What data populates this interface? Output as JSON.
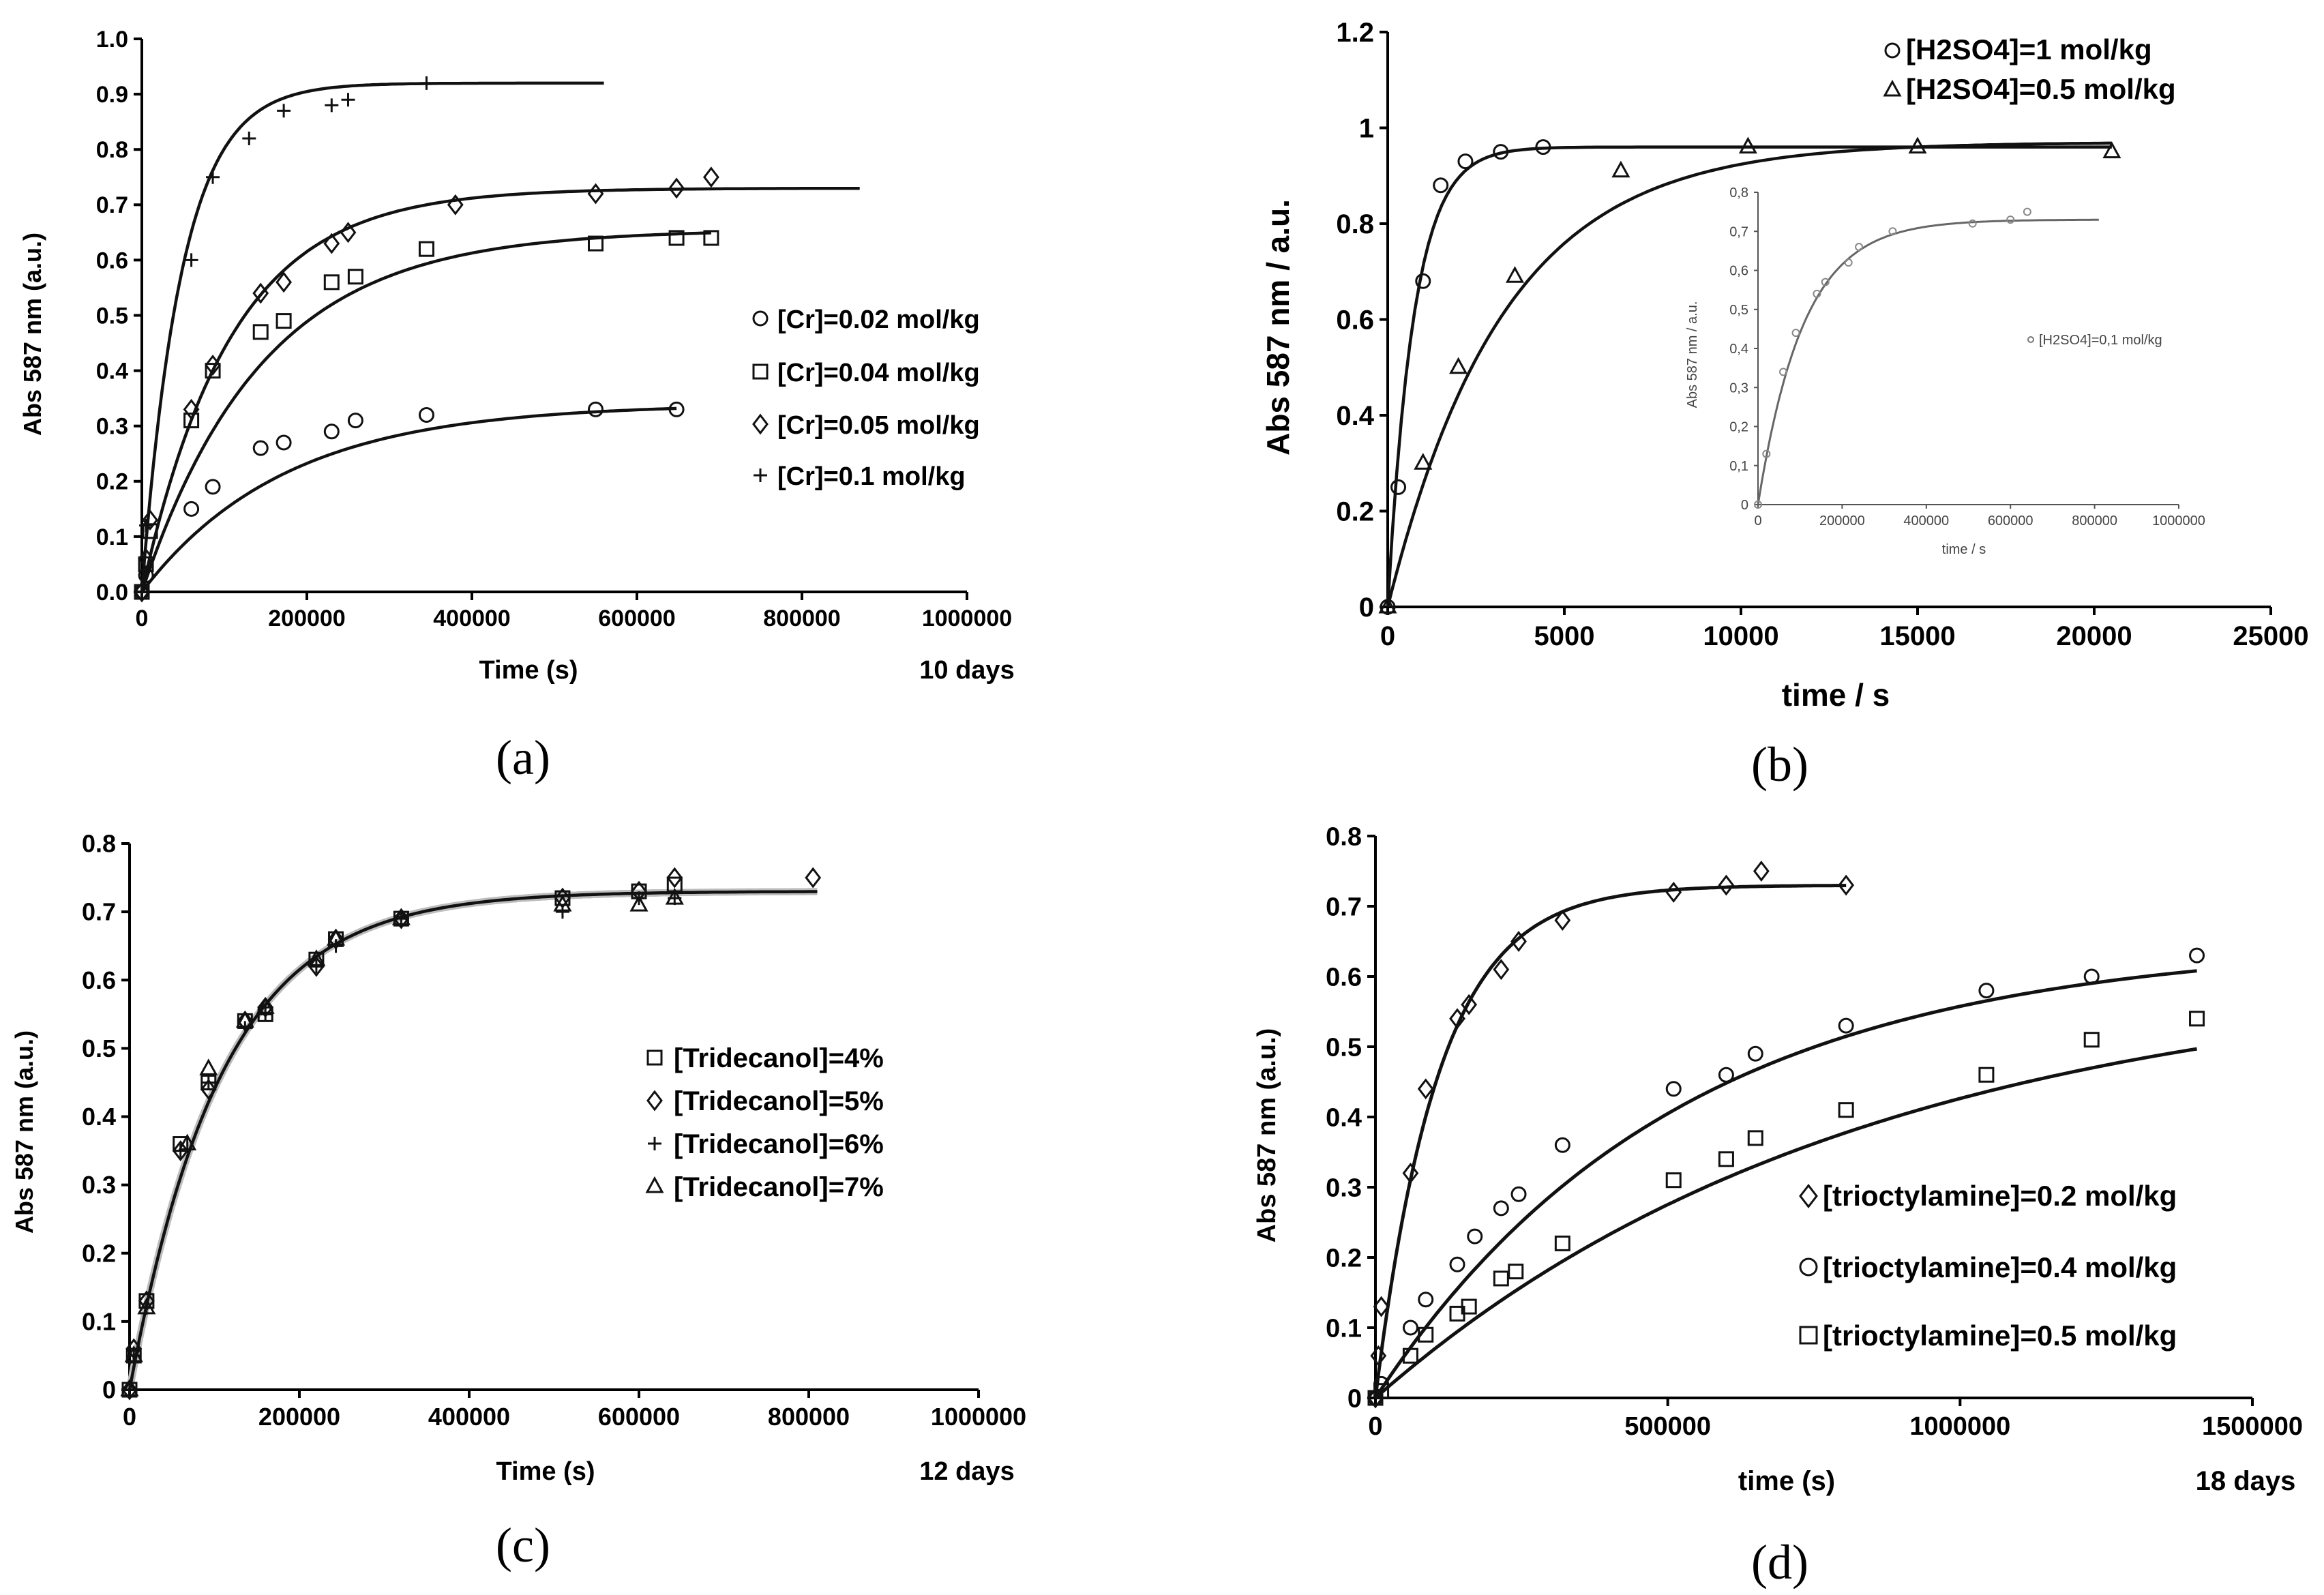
{
  "chart_data": [
    {
      "panel": "a",
      "type": "scatter",
      "caption": "(a)",
      "xlabel": "Time (s)",
      "ylabel": "Abs 587 nm (a.u.)",
      "extra_label": "10 days",
      "xlim": [
        0,
        1000000
      ],
      "ylim": [
        0,
        1.0
      ],
      "xticks": [
        "0",
        "200000",
        "400000",
        "600000",
        "800000",
        "1000000"
      ],
      "yticks": [
        "0.0",
        "0.1",
        "0.2",
        "0.3",
        "0.4",
        "0.5",
        "0.6",
        "0.7",
        "0.8",
        "0.9",
        "1.0"
      ],
      "legend_position": "right",
      "series": [
        {
          "name": "[Cr]=0.02 mol/kg",
          "marker": "circle",
          "points": [
            [
              0,
              0
            ],
            [
              5000,
              0.03
            ],
            [
              60000,
              0.15
            ],
            [
              86000,
              0.19
            ],
            [
              144000,
              0.26
            ],
            [
              172000,
              0.27
            ],
            [
              230000,
              0.29
            ],
            [
              259000,
              0.31
            ],
            [
              345000,
              0.32
            ],
            [
              550000,
              0.33
            ],
            [
              648000,
              0.33
            ]
          ],
          "fit": {
            "asymptote": 0.34,
            "k": 5.75e-06,
            "xmax": 648000
          }
        },
        {
          "name": "[Cr]=0.04 mol/kg",
          "marker": "square",
          "points": [
            [
              0,
              0
            ],
            [
              5000,
              0.05
            ],
            [
              10000,
              0.11
            ],
            [
              60000,
              0.31
            ],
            [
              86000,
              0.4
            ],
            [
              144000,
              0.47
            ],
            [
              172000,
              0.49
            ],
            [
              230000,
              0.56
            ],
            [
              259000,
              0.57
            ],
            [
              345000,
              0.62
            ],
            [
              550000,
              0.63
            ],
            [
              648000,
              0.64
            ],
            [
              690000,
              0.64
            ]
          ],
          "fit": {
            "asymptote": 0.655,
            "k": 6.85e-06,
            "xmax": 690000
          }
        },
        {
          "name": "[Cr]=0.05 mol/kg",
          "marker": "diamond",
          "points": [
            [
              0,
              0
            ],
            [
              5000,
              0.06
            ],
            [
              10000,
              0.13
            ],
            [
              60000,
              0.33
            ],
            [
              86000,
              0.41
            ],
            [
              144000,
              0.54
            ],
            [
              172000,
              0.56
            ],
            [
              230000,
              0.63
            ],
            [
              250000,
              0.65
            ],
            [
              380000,
              0.7
            ],
            [
              550000,
              0.72
            ],
            [
              648000,
              0.73
            ],
            [
              690000,
              0.75
            ]
          ],
          "fit": {
            "asymptote": 0.73,
            "k": 9.25e-06,
            "xmax": 870000
          }
        },
        {
          "name": "[Cr]=0.1 mol/kg",
          "marker": "plus",
          "points": [
            [
              0,
              0
            ],
            [
              5000,
              0.12
            ],
            [
              60000,
              0.6
            ],
            [
              86000,
              0.75
            ],
            [
              130000,
              0.82
            ],
            [
              172000,
              0.87
            ],
            [
              230000,
              0.88
            ],
            [
              250000,
              0.89
            ],
            [
              345000,
              0.92
            ]
          ],
          "fit": {
            "asymptote": 0.92,
            "k": 2.05e-05,
            "xmax": 560000
          }
        }
      ]
    },
    {
      "panel": "b",
      "type": "scatter",
      "caption": "(b)",
      "xlabel": "time / s",
      "ylabel": "Abs 587 nm / a.u.",
      "xlim": [
        0,
        25000
      ],
      "ylim": [
        0,
        1.2
      ],
      "xticks": [
        "0",
        "5000",
        "10000",
        "15000",
        "20000",
        "25000"
      ],
      "yticks": [
        "0",
        "0.2",
        "0.4",
        "0.6",
        "0.8",
        "1",
        "1.2"
      ],
      "legend_position": "top-right",
      "series": [
        {
          "name": "[H2SO4]=1 mol/kg",
          "marker": "circle",
          "points": [
            [
              0,
              0
            ],
            [
              300,
              0.25
            ],
            [
              1000,
              0.68
            ],
            [
              1500,
              0.88
            ],
            [
              2200,
              0.93
            ],
            [
              3200,
              0.95
            ],
            [
              4400,
              0.96
            ]
          ],
          "fit": {
            "asymptote": 0.96,
            "k": 0.00135,
            "xmax": 20500
          }
        },
        {
          "name": "[H2SO4]=0.5 mol/kg",
          "marker": "triangle",
          "points": [
            [
              0,
              0
            ],
            [
              1000,
              0.3
            ],
            [
              2000,
              0.5
            ],
            [
              3600,
              0.69
            ],
            [
              6600,
              0.91
            ],
            [
              10200,
              0.96
            ],
            [
              15000,
              0.96
            ],
            [
              20500,
              0.95
            ]
          ],
          "fit": {
            "asymptote": 0.97,
            "k": 0.000305,
            "xmax": 20500
          }
        }
      ],
      "inset": {
        "xlabel": "time / s",
        "ylabel": "Abs 587 nm / a.u.",
        "xlim": [
          0,
          1000000
        ],
        "ylim": [
          0,
          0.8
        ],
        "xticks": [
          "0",
          "200000",
          "400000",
          "600000",
          "800000",
          "1000000"
        ],
        "yticks": [
          "0",
          "0,1",
          "0,2",
          "0,3",
          "0,4",
          "0,5",
          "0,6",
          "0,7",
          "0,8"
        ],
        "series": [
          {
            "name": "[H2SO4]=0,1 mol/kg",
            "marker": "dot",
            "points": [
              [
                0,
                0
              ],
              [
                20000,
                0.13
              ],
              [
                60000,
                0.34
              ],
              [
                90000,
                0.44
              ],
              [
                140000,
                0.54
              ],
              [
                160000,
                0.57
              ],
              [
                215000,
                0.62
              ],
              [
                240000,
                0.66
              ],
              [
                320000,
                0.7
              ],
              [
                510000,
                0.72
              ],
              [
                600000,
                0.73
              ],
              [
                640000,
                0.75
              ]
            ],
            "fit": {
              "asymptote": 0.73,
              "k": 9.25e-06,
              "xmax": 810000
            }
          }
        ]
      }
    },
    {
      "panel": "c",
      "type": "scatter",
      "caption": "(c)",
      "xlabel": "Time (s)",
      "ylabel": "Abs 587 nm (a.u.)",
      "extra_label": "12 days",
      "xlim": [
        0,
        1000000
      ],
      "ylim": [
        0,
        0.8
      ],
      "xticks": [
        "0",
        "200000",
        "400000",
        "600000",
        "800000",
        "1000000"
      ],
      "yticks": [
        "0",
        "0.1",
        "0.2",
        "0.3",
        "0.4",
        "0.5",
        "0.6",
        "0.7",
        "0.8"
      ],
      "legend_position": "right",
      "series": [
        {
          "name": "[Tridecanol]=4%",
          "marker": "square",
          "points": [
            [
              0,
              0
            ],
            [
              5000,
              0.05
            ],
            [
              20000,
              0.13
            ],
            [
              60000,
              0.36
            ],
            [
              93000,
              0.45
            ],
            [
              136000,
              0.54
            ],
            [
              160000,
              0.55
            ],
            [
              220000,
              0.63
            ],
            [
              243000,
              0.66
            ],
            [
              320000,
              0.69
            ],
            [
              510000,
              0.72
            ],
            [
              600000,
              0.73
            ],
            [
              642000,
              0.74
            ]
          ],
          "fit": {
            "asymptote": 0.73,
            "k": 9.25e-06,
            "xmax": 642000
          }
        },
        {
          "name": "[Tridecanol]=5%",
          "marker": "diamond",
          "points": [
            [
              0,
              0
            ],
            [
              5000,
              0.06
            ],
            [
              20000,
              0.13
            ],
            [
              60000,
              0.35
            ],
            [
              93000,
              0.44
            ],
            [
              136000,
              0.54
            ],
            [
              160000,
              0.56
            ],
            [
              220000,
              0.62
            ],
            [
              243000,
              0.66
            ],
            [
              320000,
              0.69
            ],
            [
              510000,
              0.72
            ],
            [
              600000,
              0.73
            ],
            [
              642000,
              0.75
            ],
            [
              805000,
              0.75
            ]
          ],
          "fit": {
            "asymptote": 0.73,
            "k": 9.25e-06,
            "xmax": 810000
          }
        },
        {
          "name": "[Tridecanol]=6%",
          "marker": "plus",
          "points": [
            [
              0,
              0
            ],
            [
              5000,
              0.05
            ],
            [
              20000,
              0.12
            ],
            [
              60000,
              0.35
            ],
            [
              93000,
              0.45
            ],
            [
              136000,
              0.53
            ],
            [
              160000,
              0.55
            ],
            [
              220000,
              0.62
            ],
            [
              243000,
              0.65
            ],
            [
              320000,
              0.69
            ],
            [
              510000,
              0.7
            ],
            [
              600000,
              0.72
            ],
            [
              642000,
              0.72
            ]
          ],
          "fit": {
            "asymptote": 0.73,
            "k": 9.25e-06,
            "xmax": 642000
          }
        },
        {
          "name": "[Tridecanol]=7%",
          "marker": "triangle",
          "points": [
            [
              0,
              0
            ],
            [
              5000,
              0.05
            ],
            [
              20000,
              0.12
            ],
            [
              68000,
              0.36
            ],
            [
              93000,
              0.47
            ],
            [
              136000,
              0.54
            ],
            [
              160000,
              0.56
            ],
            [
              220000,
              0.63
            ],
            [
              243000,
              0.66
            ],
            [
              320000,
              0.69
            ],
            [
              510000,
              0.71
            ],
            [
              600000,
              0.71
            ],
            [
              642000,
              0.72
            ]
          ],
          "fit": {
            "asymptote": 0.73,
            "k": 9.25e-06,
            "xmax": 642000
          }
        }
      ]
    },
    {
      "panel": "d",
      "type": "scatter",
      "caption": "(d)",
      "xlabel": "time (s)",
      "ylabel": "Abs 587 nm (a.u.)",
      "extra_label": "18 days",
      "xlim": [
        0,
        1500000
      ],
      "ylim": [
        0,
        0.8
      ],
      "xticks": [
        "0",
        "500000",
        "1000000",
        "1500000"
      ],
      "yticks": [
        "0",
        "0.1",
        "0.2",
        "0.3",
        "0.4",
        "0.5",
        "0.6",
        "0.7",
        "0.8"
      ],
      "legend_position": "bottom-right",
      "series": [
        {
          "name": "[trioctylamine]=0.2 mol/kg",
          "marker": "diamond",
          "points": [
            [
              0,
              0
            ],
            [
              5000,
              0.06
            ],
            [
              10000,
              0.13
            ],
            [
              60000,
              0.32
            ],
            [
              86000,
              0.44
            ],
            [
              140000,
              0.54
            ],
            [
              160000,
              0.56
            ],
            [
              215000,
              0.61
            ],
            [
              245000,
              0.65
            ],
            [
              320000,
              0.68
            ],
            [
              510000,
              0.72
            ],
            [
              600000,
              0.73
            ],
            [
              660000,
              0.75
            ],
            [
              805000,
              0.73
            ]
          ],
          "fit": {
            "asymptote": 0.73,
            "k": 9.25e-06,
            "xmax": 805000
          }
        },
        {
          "name": "[trioctylamine]=0.4 mol/kg",
          "marker": "circle",
          "points": [
            [
              0,
              0
            ],
            [
              10000,
              0.02
            ],
            [
              60000,
              0.1
            ],
            [
              86000,
              0.14
            ],
            [
              140000,
              0.19
            ],
            [
              170000,
              0.23
            ],
            [
              215000,
              0.27
            ],
            [
              245000,
              0.29
            ],
            [
              320000,
              0.36
            ],
            [
              510000,
              0.44
            ],
            [
              600000,
              0.46
            ],
            [
              650000,
              0.49
            ],
            [
              805000,
              0.53
            ],
            [
              1045000,
              0.58
            ],
            [
              1225000,
              0.6
            ],
            [
              1405000,
              0.63
            ]
          ],
          "fit": {
            "asymptote": 0.65,
            "k": 1.95e-06,
            "xmax": 1405000
          }
        },
        {
          "name": "[trioctylamine]=0.5 mol/kg",
          "marker": "square",
          "points": [
            [
              0,
              0
            ],
            [
              10000,
              0.01
            ],
            [
              60000,
              0.06
            ],
            [
              86000,
              0.09
            ],
            [
              140000,
              0.12
            ],
            [
              160000,
              0.13
            ],
            [
              215000,
              0.17
            ],
            [
              240000,
              0.18
            ],
            [
              320000,
              0.22
            ],
            [
              510000,
              0.31
            ],
            [
              600000,
              0.34
            ],
            [
              650000,
              0.37
            ],
            [
              805000,
              0.41
            ],
            [
              1045000,
              0.46
            ],
            [
              1225000,
              0.51
            ],
            [
              1405000,
              0.54
            ]
          ],
          "fit": {
            "asymptote": 0.61,
            "k": 1.2e-06,
            "xmax": 1405000
          }
        }
      ]
    }
  ]
}
